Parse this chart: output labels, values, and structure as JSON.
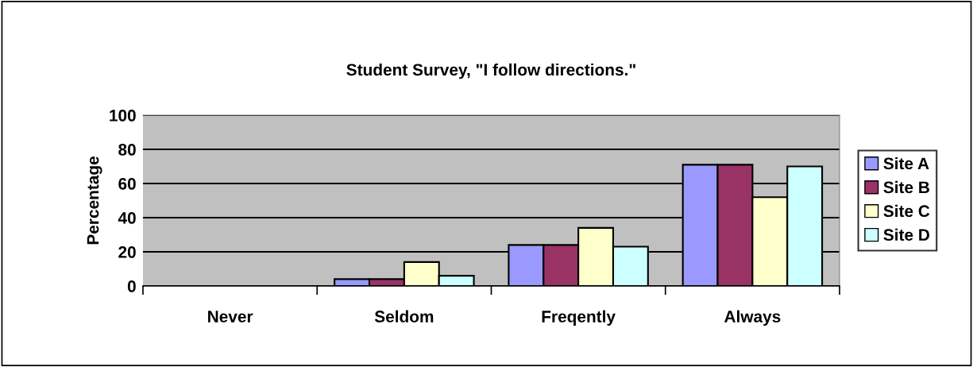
{
  "chart_data": {
    "type": "bar",
    "title": "Student Survey, \"I follow directions.\"",
    "ylabel": "Percentage",
    "categories": [
      "Never",
      "Seldom",
      "Freqently",
      "Always"
    ],
    "series": [
      {
        "name": "Site A",
        "color": "#9999ff",
        "values": [
          0,
          4,
          24,
          71
        ]
      },
      {
        "name": "Site B",
        "color": "#993366",
        "values": [
          0,
          4,
          24,
          71
        ]
      },
      {
        "name": "Site C",
        "color": "#ffffcc",
        "values": [
          0,
          14,
          34,
          52
        ]
      },
      {
        "name": "Site D",
        "color": "#ccffff",
        "values": [
          0,
          6,
          23,
          70
        ]
      }
    ],
    "ylim": [
      0,
      100
    ],
    "yticks": [
      0,
      20,
      40,
      60,
      80,
      100
    ],
    "grid": "y",
    "legend": "right"
  }
}
